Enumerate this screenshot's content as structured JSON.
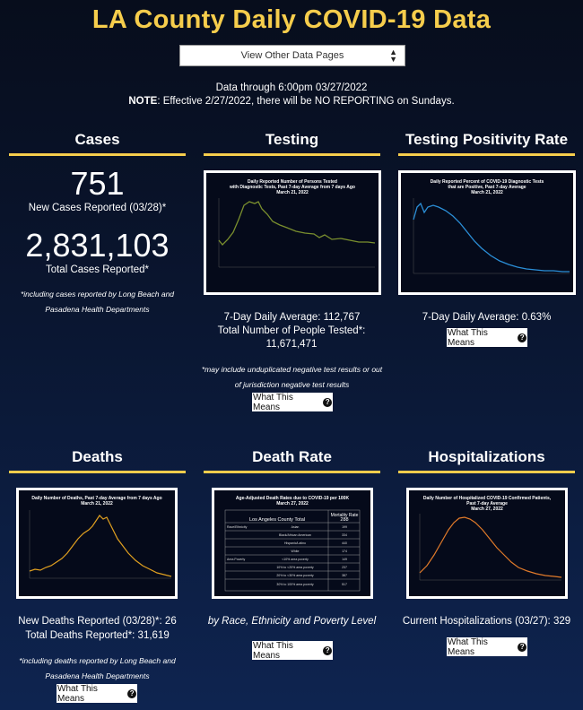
{
  "header": {
    "title": "LA County Daily COVID-19 Data",
    "select_value": "View Other Data Pages",
    "data_through": "Data through 6:00pm 03/27/2022",
    "note_label": "NOTE",
    "note_text": ": Effective 2/27/2022, there will be NO REPORTING on Sundays."
  },
  "cases": {
    "title": "Cases",
    "new_value": "751",
    "new_label": "New Cases Reported (03/28)*",
    "total_value": "2,831,103",
    "total_label": "Total Cases Reported*",
    "footnote": "*including cases reported by Long Beach and Pasadena Health Departments"
  },
  "testing": {
    "title": "Testing",
    "chart_title": "Daily Reported Number of Persons Tested with Diagnostic Tests, Past 7-day Average from 7 days Ago March 21, 2022",
    "avg": "7-Day Daily Average: 112,767",
    "total": "Total Number of People Tested*: 11,671,471",
    "footnote": "*may include unduplicated negative test results or out of jurisdiction negative test results",
    "button": "What This Means"
  },
  "positivity": {
    "title": "Testing Positivity Rate",
    "chart_title": "Daily Reported Percent of COVID-19 Diagnostic Tests that are Positive, Past 7-day Average March 21, 2022",
    "avg": "7-Day Daily Average: 0.63%",
    "button": "What This Means"
  },
  "deaths": {
    "title": "Deaths",
    "chart_title": "Daily Number of Deaths, Past 7-day Average from 7 days Ago March 21, 2022",
    "new": "New Deaths Reported (03/28)*: 26",
    "total": "Total Deaths Reported*: 31,619",
    "footnote": "*including deaths reported by Long Beach and Pasadena Health Departments",
    "button": "What This Means"
  },
  "death_rate": {
    "title": "Death Rate",
    "chart_title": "Age-Adjusted Death Rates due to COVID-19 per 100K March 27, 2022",
    "table_header": "Mortality Rate",
    "table_total_label": "Los Angeles County Total",
    "table_total_value": "288",
    "rows": [
      {
        "group": "Race/Ethnicity",
        "label": "Asian",
        "value": "199"
      },
      {
        "group": "",
        "label": "Black/African American",
        "value": "334"
      },
      {
        "group": "",
        "label": "Hispanic/Latino",
        "value": "440"
      },
      {
        "group": "",
        "label": "White",
        "value": "174"
      },
      {
        "group": "Area Poverty",
        "label": "<10% area poverty",
        "value": "149"
      },
      {
        "group": "",
        "label": "10% to <20% area poverty",
        "value": "237"
      },
      {
        "group": "",
        "label": "20% to <30% area poverty",
        "value": "387"
      },
      {
        "group": "",
        "label": "30% to 100% area poverty",
        "value": "517"
      }
    ],
    "caption": "by Race, Ethnicity and Poverty Level",
    "button": "What This Means"
  },
  "hospitalizations": {
    "title": "Hospitalizations",
    "chart_title": "Daily Number of Hospitalized COVID-19 Confirmed Patients, Past 7-day Average March 27, 2022",
    "current": "Current Hospitalizations (03/27): 329",
    "button": "What This Means"
  },
  "colors": {
    "accent": "#f6cd4c",
    "testing_line": "#7a8f2e",
    "positivity_line": "#2b8fd8",
    "deaths_line": "#e0a020",
    "hosp_line": "#e07a2a"
  }
}
